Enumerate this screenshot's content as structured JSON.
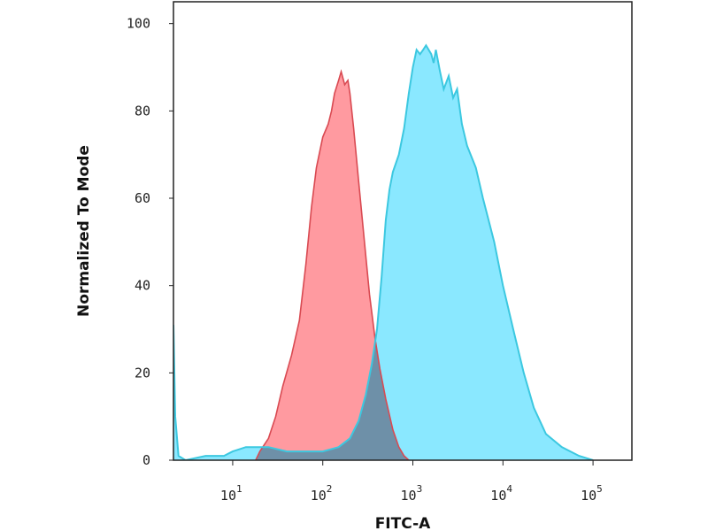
{
  "chart_data": {
    "type": "area",
    "title": "",
    "xlabel": "FITC-A",
    "ylabel": "Normalized To Mode",
    "x_scale": "log",
    "xlim": [
      2.2,
      270000
    ],
    "ylim": [
      0,
      105
    ],
    "x_ticks": [
      {
        "value": 10,
        "base": "10",
        "exp": "1"
      },
      {
        "value": 100,
        "base": "10",
        "exp": "2"
      },
      {
        "value": 1000,
        "base": "10",
        "exp": "3"
      },
      {
        "value": 10000,
        "base": "10",
        "exp": "4"
      },
      {
        "value": 100000,
        "base": "10",
        "exp": "5"
      }
    ],
    "y_ticks": [
      "0",
      "20",
      "40",
      "60",
      "80",
      "100"
    ],
    "grid": false,
    "series": [
      {
        "color": "#f08080",
        "fill": "#ff9aa0",
        "points": [
          [
            18,
            0
          ],
          [
            20,
            2
          ],
          [
            25,
            5
          ],
          [
            30,
            10
          ],
          [
            36,
            17
          ],
          [
            45,
            24
          ],
          [
            55,
            32
          ],
          [
            65,
            45
          ],
          [
            75,
            58
          ],
          [
            85,
            67
          ],
          [
            100,
            74
          ],
          [
            115,
            77
          ],
          [
            125,
            80
          ],
          [
            135,
            84
          ],
          [
            150,
            87
          ],
          [
            160,
            89
          ],
          [
            175,
            86
          ],
          [
            190,
            87
          ],
          [
            200,
            84
          ],
          [
            220,
            76
          ],
          [
            250,
            64
          ],
          [
            290,
            50
          ],
          [
            330,
            38
          ],
          [
            380,
            28
          ],
          [
            430,
            21
          ],
          [
            500,
            14
          ],
          [
            600,
            7
          ],
          [
            700,
            3
          ],
          [
            800,
            1
          ],
          [
            900,
            0
          ]
        ]
      },
      {
        "color": "#3cc8e0",
        "fill": "#8ae8ff",
        "points": [
          [
            2.2,
            31
          ],
          [
            2.3,
            10
          ],
          [
            2.5,
            1
          ],
          [
            3,
            0
          ],
          [
            5,
            1
          ],
          [
            8,
            1
          ],
          [
            10,
            2
          ],
          [
            14,
            3
          ],
          [
            18,
            3
          ],
          [
            25,
            3
          ],
          [
            40,
            2
          ],
          [
            60,
            2
          ],
          [
            100,
            2
          ],
          [
            150,
            3
          ],
          [
            200,
            5
          ],
          [
            250,
            9
          ],
          [
            300,
            15
          ],
          [
            350,
            22
          ],
          [
            400,
            30
          ],
          [
            450,
            42
          ],
          [
            500,
            55
          ],
          [
            550,
            62
          ],
          [
            600,
            66
          ],
          [
            700,
            70
          ],
          [
            800,
            76
          ],
          [
            900,
            84
          ],
          [
            1000,
            90
          ],
          [
            1100,
            94
          ],
          [
            1200,
            93
          ],
          [
            1300,
            94
          ],
          [
            1400,
            95
          ],
          [
            1600,
            93
          ],
          [
            1700,
            91
          ],
          [
            1800,
            94
          ],
          [
            2000,
            89
          ],
          [
            2200,
            85
          ],
          [
            2500,
            88
          ],
          [
            2800,
            83
          ],
          [
            3100,
            85
          ],
          [
            3500,
            77
          ],
          [
            4000,
            72
          ],
          [
            5000,
            67
          ],
          [
            6000,
            60
          ],
          [
            8000,
            50
          ],
          [
            10000,
            40
          ],
          [
            13000,
            30
          ],
          [
            17000,
            20
          ],
          [
            22000,
            12
          ],
          [
            30000,
            6
          ],
          [
            45000,
            3
          ],
          [
            70000,
            1
          ],
          [
            100000,
            0
          ]
        ]
      }
    ],
    "overlap_color": "#6e90a8"
  }
}
